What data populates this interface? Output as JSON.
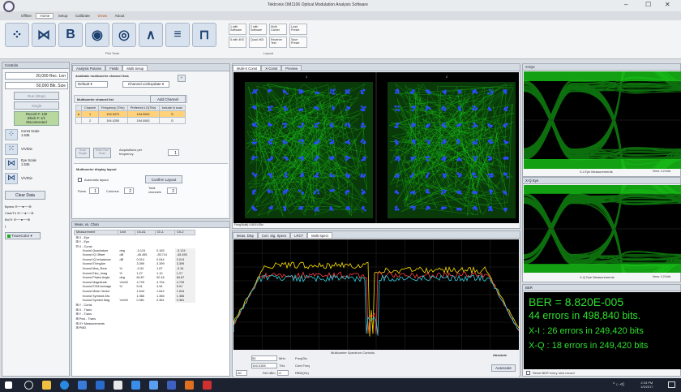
{
  "window": {
    "title": "Tektronix OM1106 Optical Modulation Analysis Software",
    "minimize": "–",
    "restore": "☐",
    "close": "✕"
  },
  "menu": [
    "Offline",
    "Home",
    "Setup",
    "Calibrate",
    "Views",
    "About"
  ],
  "ribbon": {
    "groups": {
      "plot_tools": "Plot Tools",
      "layout": "Layout"
    },
    "small_buttons": [
      "1 with Software",
      "2 with Software",
      "Multi Carrier",
      "Load Preset",
      "5 with 4K5",
      "Quad 4K5",
      "Receiver Test",
      "Save Preset"
    ]
  },
  "controls_panel": {
    "title": "Controls",
    "field1_value": "20,000",
    "field1_unit": "Rec. Len",
    "field2_value": "50,000",
    "field2_unit": "Blk. Size",
    "run_label": "Run (Stop)",
    "single_label": "Single",
    "record_line": "Record #: 130",
    "block_line": "Block #: 1/1",
    "disconnected": "Disconnected",
    "const_scale": {
      "label": "Const Scale",
      "value": "1.535",
      "unit": "V/V/Div"
    },
    "eye_scale": {
      "label": "Eye Scale",
      "value": "1.535",
      "unit": "V/V/Div"
    },
    "clear_data": "Clear Data",
    "sliders": [
      "Bpmw",
      "Clstr/Th",
      "Bn/Tr"
    ],
    "trace_color": "TraceColor"
  },
  "setup_panel": {
    "tabs": [
      "Analysis Params",
      "Fields",
      "Multi Setup"
    ],
    "available_title": "Available multicarrier channel lists",
    "default_select": "Default",
    "channel_select": "Channel List/Update",
    "plus": "+",
    "list_title": "Multicarrier channel list",
    "add_channel": "Add Channel",
    "columns": [
      "Channel",
      "Frequency (THz)",
      "Preferred LO(THz)",
      "Include in scan"
    ],
    "rows": [
      {
        "marker": "▸",
        "channel": "1",
        "freq": "193.9470",
        "lo": "194.0063",
        "include": "⊙"
      },
      {
        "marker": "",
        "channel": "2",
        "freq": "194.0250",
        "lo": "194.0063",
        "include": "⊙"
      }
    ],
    "scan_single": "Scan Single",
    "scan_run": "Scan Run Scan",
    "acq_label": "Acquisitions per frequency",
    "acq_value": "1",
    "display_title": "Multicarrier display layout",
    "auto_layout": "Automatic layout",
    "confirm_layout": "Confirm Layout",
    "rows_label": "Rows",
    "rows_value": "1",
    "cols_label": "Columns",
    "cols_value": "2",
    "total_label": "Total channels",
    "total_value": "2"
  },
  "meas_panel": {
    "title": "Meas. vs. Chan",
    "columns": [
      "Measurement",
      "Unit",
      "Ch-A1",
      "Ch-1",
      "Ch-2"
    ],
    "rows": [
      {
        "name": "⊞ X - Eye",
        "unit": "",
        "a": "",
        "b": "",
        "c": "",
        "group": true
      },
      {
        "name": "⊞ Y - Eye",
        "unit": "",
        "a": "",
        "b": "",
        "c": "",
        "group": true
      },
      {
        "name": "⊟ X - Const",
        "unit": "",
        "a": "",
        "b": "",
        "c": "",
        "group": true
      },
      {
        "name": "Xconst Quadrature",
        "unit": "deg",
        "a": "-0.124",
        "b": "0.183",
        "c": "-0.124"
      },
      {
        "name": "Xconst IQ Offset",
        "unit": "dB",
        "a": "-45.455",
        "b": "-35.714",
        "c": "-45.455"
      },
      {
        "name": "Xconst IQ Imbalance",
        "unit": "dB",
        "a": "0.014",
        "b": "0.044",
        "c": "0.014"
      },
      {
        "name": "Xconst EVmgAm",
        "unit": "",
        "a": "3.399",
        "b": "3.399",
        "c": "3.399"
      },
      {
        "name": "Xconst Mea_Rear",
        "unit": "%",
        "a": "-0.34",
        "b": "1.87",
        "c": "-0.34"
      },
      {
        "name": "Xconst Elev_Imag",
        "unit": "%",
        "a": "1.27",
        "b": "1.19",
        "c": "1.27"
      },
      {
        "name": "Xconst Phase Angle",
        "unit": "deg",
        "a": "84.87",
        "b": "90.18",
        "c": "84.87"
      },
      {
        "name": "Xconst Magnitude",
        "unit": "V/mW",
        "a": "4.725",
        "b": "4.794",
        "c": "4.725"
      },
      {
        "name": "Xconst EVM Average",
        "unit": "%",
        "a": "5.01",
        "b": "4.94",
        "c": "5.01"
      },
      {
        "name": "Xconst Mean Vector",
        "unit": "",
        "a": "1.644",
        "b": "1.644",
        "c": "1.644"
      },
      {
        "name": "Xconst Symbols Dis",
        "unit": "",
        "a": "1.366",
        "b": "1.366",
        "c": "1.366"
      },
      {
        "name": "Xconst Symbol Mag",
        "unit": "V/mW",
        "a": "0.381",
        "b": "0.381",
        "c": "0.381"
      },
      {
        "name": "⊞ Y - Const",
        "unit": "",
        "a": "",
        "b": "",
        "c": "",
        "group": true
      },
      {
        "name": "⊞ X - Trans",
        "unit": "",
        "a": "",
        "b": "",
        "c": "",
        "group": true
      },
      {
        "name": "⊞ Y - Trans",
        "unit": "",
        "a": "",
        "b": "",
        "c": "",
        "group": true
      },
      {
        "name": "⊞ Pow - Trans",
        "unit": "",
        "a": "",
        "b": "",
        "c": "",
        "group": true
      },
      {
        "name": "⊞ XY Measurements",
        "unit": "",
        "a": "",
        "b": "",
        "c": "",
        "group": true
      },
      {
        "name": "⊞ PMD",
        "unit": "",
        "a": "",
        "b": "",
        "c": "",
        "group": true
      }
    ]
  },
  "const_panel": {
    "tabs": [
      "Multi-X Const",
      "X-Const",
      "Preview"
    ],
    "channel_labels": [
      "1",
      "2"
    ],
    "footer": "Freq(Multi) 0.891V/Div"
  },
  "spec_panel": {
    "tabs": [
      "Meas. Disp",
      "Corr. Sig. Specs",
      "LRCT",
      "Multi Spect"
    ],
    "controls_title": "Multicarrier Spectrum Controls",
    "freq1_value": "50",
    "freq1_unit": "MHz",
    "freq1_label": "Freq/Div",
    "freq2_value": "194.0155",
    "freq2_unit": "THz",
    "freq2_label": "Cent Freq",
    "n_value": "-40",
    "ref_label": "Ref dBm",
    "ref_value": "-5",
    "rbw_label": "RBW(Hz)",
    "absolute": "Absolute",
    "autoscale": "Autoscale"
  },
  "xeye_panel": {
    "title": "X-Eye",
    "footer": "X-I Eye Measurements",
    "corner": "Hmrs: 0.2V/div"
  },
  "yeye_panel": {
    "title": "X-Q Eye",
    "footer": "X-Q Eye Measurements",
    "corner": "Hmrs: 0.2V/div"
  },
  "ber_panel": {
    "title": "BER",
    "ber_line": "BER = 8.820E-005",
    "errors_line": "44 errors in 498,840 bits.",
    "xi_line": "X-I : 26 errors in 249,420 bits",
    "xq_line": "X-Q : 18 errors in 249,420 bits",
    "reset_label": "Reset BER every new record"
  },
  "taskbar": {
    "time": "2:33 PM",
    "date": "1/9/2017",
    "tray": "^ ⌂ ⊲)"
  },
  "colors": {
    "ber_text": "#2ee02e",
    "eye_green": "#18c818",
    "constellation_blue": "#2a4cff",
    "spectrum_yellow": "#ffe000",
    "spectrum_red": "#ff4040",
    "spectrum_cyan": "#30d0e0"
  }
}
